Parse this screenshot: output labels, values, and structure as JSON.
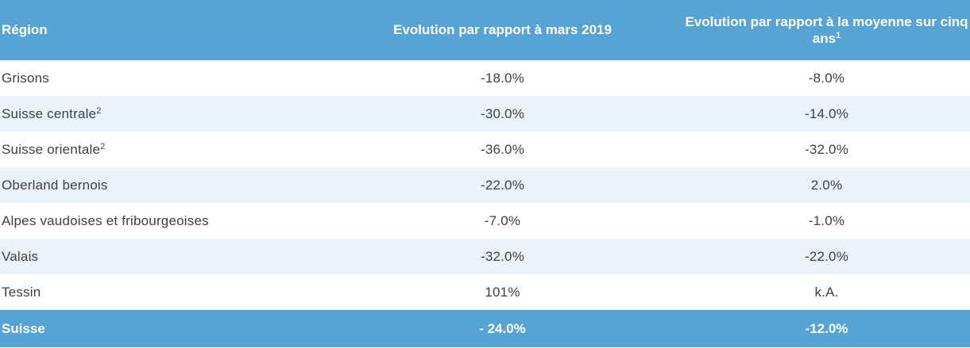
{
  "header": {
    "region": "Région",
    "evolution_march": "Evolution par rapport à mars 2019",
    "evolution_five_year": "Evolution par rapport à la moyenne sur cinq ans",
    "evolution_five_year_sup": "1"
  },
  "rows": [
    {
      "region": "Grisons",
      "sup": "",
      "march": "-18.0%",
      "five_year": "-8.0%"
    },
    {
      "region": "Suisse centrale",
      "sup": "2",
      "march": "-30.0%",
      "five_year": "-14.0%"
    },
    {
      "region": "Suisse orientale",
      "sup": "2",
      "march": "-36.0%",
      "five_year": "-32.0%"
    },
    {
      "region": "Oberland bernois",
      "sup": "",
      "march": "-22.0%",
      "five_year": "2.0%"
    },
    {
      "region": "Alpes vaudoises et fribourgeoises",
      "sup": "",
      "march": "-7.0%",
      "five_year": "-1.0%"
    },
    {
      "region": "Valais",
      "sup": "",
      "march": "-32.0%",
      "five_year": "-22.0%"
    },
    {
      "region": "Tessin",
      "sup": "",
      "march": "101%",
      "five_year": "k.A."
    }
  ],
  "total": {
    "region": "Suisse",
    "march": "- 24.0%",
    "five_year": "-12.0%"
  },
  "colors": {
    "header_bg": "#57a3d3",
    "alt_row_bg": "#eaf3fa",
    "text": "#3f3f3f"
  }
}
